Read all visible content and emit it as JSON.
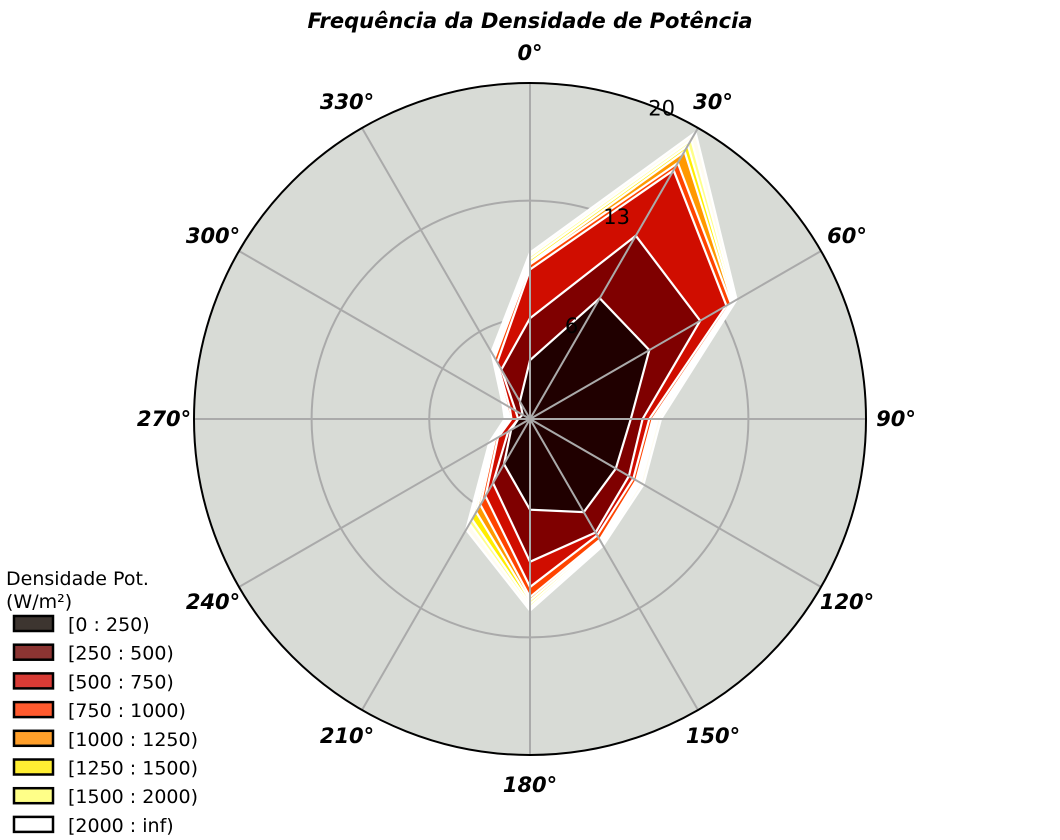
{
  "chart_data": {
    "type": "radar-stacked",
    "title": "Frequência da Densidade de Potência",
    "angle_ticks": [
      "0°",
      "30°",
      "60°",
      "90°",
      "120°",
      "150°",
      "180°",
      "210°",
      "240°",
      "270°",
      "300°",
      "330°"
    ],
    "directions_deg": [
      0,
      30,
      60,
      90,
      120,
      150,
      180,
      210,
      240,
      270,
      300,
      330
    ],
    "radial_ticks": [
      6,
      13,
      20
    ],
    "rmax": 20,
    "grid": true,
    "legend": {
      "title": "Densidade Pot. (W/m²)",
      "placement": "bottom-left"
    },
    "series": [
      {
        "name": "[0 : 250)",
        "color": "#200000",
        "legend_color": "#3d3530",
        "values": [
          3.5,
          8.3,
          8.2,
          6.0,
          5.9,
          6.4,
          5.4,
          3.1,
          1.3,
          0.7,
          0.5,
          1.2
        ]
      },
      {
        "name": "[250 : 500)",
        "color": "#7f0000",
        "legend_color": "#8b3432",
        "values": [
          6.0,
          12.6,
          11.7,
          6.7,
          6.8,
          7.8,
          8.5,
          4.4,
          1.5,
          0.7,
          1.0,
          3.4
        ]
      },
      {
        "name": "[500 : 750)",
        "color": "#d00d00",
        "legend_color": "#d83b35",
        "values": [
          8.9,
          17.1,
          13.5,
          7.1,
          7.1,
          8.0,
          10.0,
          5.3,
          2.2,
          1.1,
          1.4,
          3.9
        ]
      },
      {
        "name": "[750 : 1000)",
        "color": "#ff4400",
        "legend_color": "#ff5a2e",
        "values": [
          9.2,
          17.6,
          13.8,
          7.3,
          7.3,
          8.3,
          10.6,
          5.9,
          2.4,
          1.2,
          1.6,
          4.2
        ]
      },
      {
        "name": "[1000 : 1250)",
        "color": "#ff9900",
        "legend_color": "#ff9f2a",
        "values": [
          9.3,
          18.4,
          13.9,
          7.4,
          7.4,
          8.4,
          10.8,
          6.4,
          2.5,
          1.3,
          1.7,
          4.3
        ]
      },
      {
        "name": "[1250 : 1500)",
        "color": "#ffee00",
        "legend_color": "#ffee33",
        "values": [
          9.5,
          18.8,
          14.0,
          7.5,
          7.5,
          8.5,
          11.0,
          6.9,
          2.6,
          1.4,
          1.7,
          4.4
        ]
      },
      {
        "name": "[1500 : 2000)",
        "color": "#ffff88",
        "legend_color": "#ffff88",
        "values": [
          9.7,
          19.2,
          14.1,
          7.6,
          7.6,
          8.6,
          11.2,
          7.2,
          2.7,
          1.4,
          1.8,
          4.5
        ]
      },
      {
        "name": "[2000 : inf)",
        "color": "#fffcf0",
        "legend_color": "#ffffff",
        "values": [
          9.9,
          19.7,
          14.2,
          7.8,
          7.8,
          8.7,
          11.4,
          7.6,
          2.8,
          1.5,
          1.9,
          4.6
        ]
      }
    ],
    "colors": {
      "plot_background": "#d8dbd6",
      "grid": "#aaaaaa",
      "outline": "#000000",
      "series_edge": "#ffffff"
    }
  }
}
